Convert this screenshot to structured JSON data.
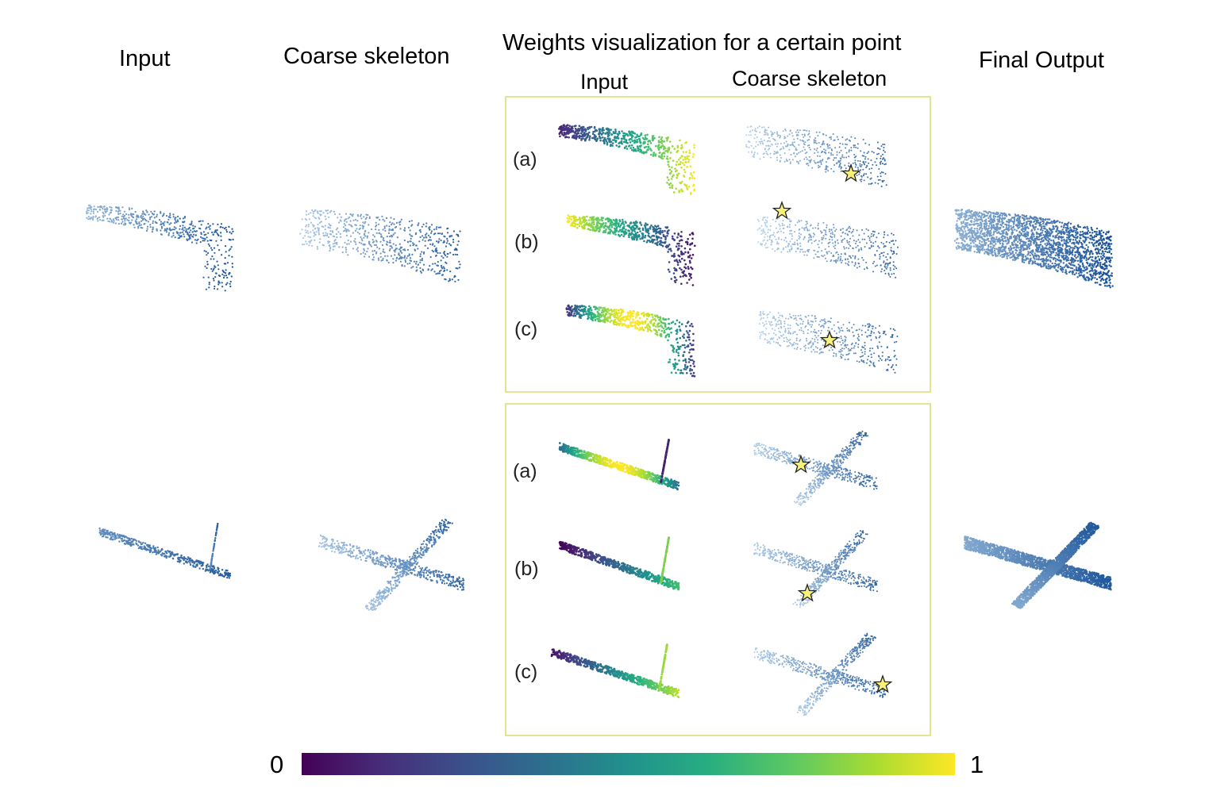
{
  "headers": {
    "input": "Input",
    "coarse": "Coarse skeleton",
    "weights": "Weights visualization for a certain point",
    "final": "Final Output"
  },
  "subheaders": {
    "input": "Input",
    "coarse": "Coarse skeleton"
  },
  "row_labels": [
    "(a)",
    "(b)",
    "(c)"
  ],
  "colorbar": {
    "min": "0",
    "max": "1",
    "colormap": "viridis"
  },
  "colors": {
    "panel_border": "#e2e58f",
    "point_blue": "#2f6db0",
    "light_blue": "#9cc3e4",
    "star": "#f7f07a"
  }
}
